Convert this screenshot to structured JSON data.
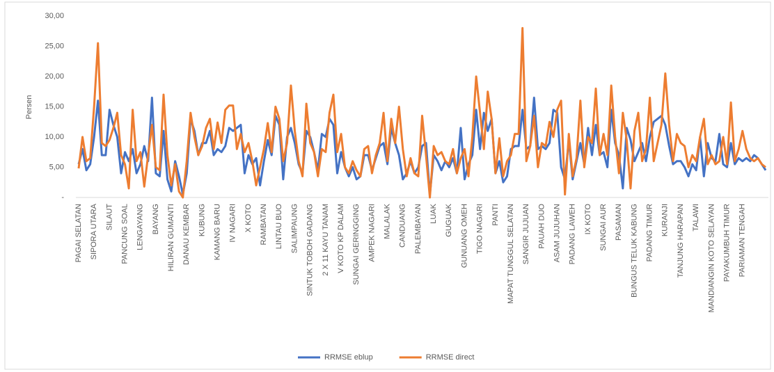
{
  "chart_data": {
    "type": "line",
    "y_label": "Persen",
    "ylim": [
      0,
      30
    ],
    "yticks": [
      {
        "value": 0,
        "label": "-"
      },
      {
        "value": 5,
        "label": "5,00"
      },
      {
        "value": 10,
        "label": "10,00"
      },
      {
        "value": 15,
        "label": "15,00"
      },
      {
        "value": 20,
        "label": "20,00"
      },
      {
        "value": 25,
        "label": "25,00"
      },
      {
        "value": 30,
        "label": "30,00"
      }
    ],
    "grid": false,
    "legend": "bottom",
    "categories": [
      "PAGAI SELATAN",
      null,
      null,
      null,
      "SIPORA UTARA",
      null,
      null,
      null,
      "SILAUT",
      null,
      null,
      null,
      "PANCUNG SOAL",
      null,
      null,
      null,
      "LENGAYANG",
      null,
      null,
      null,
      "BAYANG",
      null,
      null,
      null,
      "HILIRAN GUMANTI",
      null,
      null,
      null,
      "DANAU KEMBAR",
      null,
      null,
      null,
      "KUBUNG",
      null,
      null,
      null,
      "KAMANG BARU",
      null,
      null,
      null,
      "IV NAGARI",
      null,
      null,
      null,
      "X KOTO",
      null,
      null,
      null,
      "RAMBATAN",
      null,
      null,
      null,
      "LINTAU BUO",
      null,
      null,
      null,
      "SALIMPAUNG",
      null,
      null,
      null,
      "SINTUK TOBOH GADANG",
      null,
      null,
      null,
      "2 X 11 KAYU TANAM",
      null,
      null,
      null,
      "V KOTO KP DALAM",
      null,
      null,
      null,
      "SUNGAI GERINGGING",
      null,
      null,
      null,
      "AMPEK NAGARI",
      null,
      null,
      null,
      "MALALAK",
      null,
      null,
      null,
      "CANDUANG",
      null,
      null,
      null,
      "PALEMBAYAN",
      null,
      null,
      null,
      "LUAK",
      null,
      null,
      null,
      "GUGUAK",
      null,
      null,
      null,
      "GUNUANG OMEH",
      null,
      null,
      null,
      "TIGO NAGARI",
      null,
      null,
      null,
      "PANTI",
      null,
      null,
      null,
      "MAPAT TUNGGUL SELATAN",
      null,
      null,
      null,
      "SANGIR JUJUAN",
      null,
      null,
      null,
      "PAUAH DUO",
      null,
      null,
      null,
      "ASAM JUJUHAN",
      null,
      null,
      null,
      "PADANG LAWEH",
      null,
      null,
      null,
      "IX KOTO",
      null,
      null,
      null,
      "SUNGAI AUR",
      null,
      null,
      null,
      "PASAMAN",
      null,
      null,
      null,
      "BUNGUS TELUK KABUNG",
      null,
      null,
      null,
      "PADANG TIMUR",
      null,
      null,
      null,
      "KURANJI",
      null,
      null,
      null,
      "TANJUNG HARAPAN",
      null,
      null,
      null,
      "TALAWI",
      null,
      null,
      null,
      "MANDIANGIN KOTO SELAYAN",
      null,
      null,
      null,
      "PAYAKUMBUH TIMUR",
      null,
      null,
      null,
      "PARIAMAN TENGAH",
      null,
      null,
      null,
      null,
      null,
      null
    ],
    "series": [
      {
        "name": "RRMSE eblup",
        "color": "#4472c4",
        "values": [
          5.5,
          8,
          4.5,
          5.5,
          10,
          16,
          7,
          7,
          14.5,
          12,
          10,
          4,
          7.5,
          6,
          8,
          4,
          5.5,
          8.5,
          6,
          16.5,
          4,
          3.5,
          11,
          3,
          1,
          6,
          3.5,
          0.5,
          4,
          13,
          11,
          7,
          9,
          9,
          11,
          7,
          8,
          7.5,
          8.5,
          11.5,
          11,
          11.5,
          12,
          4,
          7,
          5.5,
          6.5,
          2,
          6,
          9.5,
          7,
          13.5,
          12,
          3,
          10,
          11.5,
          9,
          5.5,
          4,
          11,
          10,
          7.5,
          4.5,
          10.5,
          10,
          13,
          12,
          4,
          7.5,
          5,
          3.5,
          5,
          3,
          3.5,
          7,
          7,
          4.5,
          6.5,
          8.5,
          9,
          5.5,
          11.5,
          9,
          7,
          3,
          4,
          6,
          4,
          5,
          8.5,
          9,
          0.5,
          7,
          6,
          4.5,
          6,
          5,
          6.5,
          4,
          11.5,
          3,
          5.5,
          7,
          14.5,
          8,
          14,
          11,
          13,
          4,
          6,
          2.5,
          3.5,
          8,
          8.5,
          8.5,
          14.5,
          8,
          8.5,
          16.5,
          8,
          8.5,
          8,
          9,
          14.5,
          14,
          5,
          3,
          9.5,
          3,
          6,
          9,
          5.5,
          11.5,
          7,
          12,
          7,
          7.5,
          5,
          14.5,
          9,
          7,
          1.5,
          11.5,
          9.5,
          6,
          7.5,
          9,
          6,
          10,
          12.5,
          13,
          13.5,
          12,
          8.5,
          5.5,
          6,
          6,
          5,
          3.5,
          5.5,
          4.5,
          10,
          3.5,
          9,
          6.5,
          6,
          10.5,
          5.5,
          5,
          9,
          5.5,
          6.5,
          6,
          6.5,
          6,
          7,
          6.5,
          5.5,
          4.5
        ]
      },
      {
        "name": "RRMSE direct",
        "color": "#ed7d31",
        "values": [
          4.8,
          10,
          6,
          6.5,
          15,
          25.5,
          9,
          8.5,
          9.5,
          11.5,
          14,
          7,
          5.5,
          1.5,
          14.5,
          6,
          7.5,
          1.8,
          7,
          12,
          5,
          4.5,
          17,
          7,
          2,
          5.5,
          1,
          0,
          6,
          14,
          10,
          7,
          8.5,
          11.5,
          13,
          8,
          12.4,
          9,
          14.5,
          15.2,
          15.2,
          8,
          10.5,
          7.5,
          9,
          6,
          2,
          5,
          8,
          12.3,
          7.5,
          15,
          13,
          6,
          9,
          18.5,
          11,
          6,
          3.5,
          15.5,
          9,
          7.5,
          3.5,
          8,
          7.5,
          14,
          17,
          7.5,
          10.5,
          5,
          4,
          6,
          4.5,
          3.5,
          8,
          8.5,
          4,
          7,
          9,
          14,
          6,
          13,
          9,
          15,
          8,
          3.5,
          6.5,
          4,
          3.5,
          13.5,
          7,
          0,
          8.5,
          7,
          7.5,
          6,
          5.5,
          8,
          4,
          6.5,
          8,
          3.5,
          10,
          20,
          14,
          8,
          17.5,
          13,
          4,
          9.8,
          3.5,
          6,
          7,
          10.5,
          10.5,
          28,
          6,
          8.5,
          13.5,
          5,
          9,
          8.5,
          12.5,
          10,
          14.5,
          16,
          0.5,
          10.5,
          3.5,
          6.5,
          16,
          5,
          10,
          9,
          18,
          7,
          10.5,
          7,
          18.5,
          10,
          4,
          14,
          9.5,
          1.5,
          11,
          14,
          6,
          8,
          16.5,
          6,
          9,
          12,
          20.5,
          12,
          6,
          10.5,
          9,
          8.5,
          5,
          7,
          6,
          10,
          13,
          5.5,
          7,
          5.5,
          6,
          10,
          5.5,
          15.7,
          6,
          8,
          11,
          8,
          6.5,
          6,
          6.5,
          5.5,
          5
        ]
      }
    ]
  }
}
